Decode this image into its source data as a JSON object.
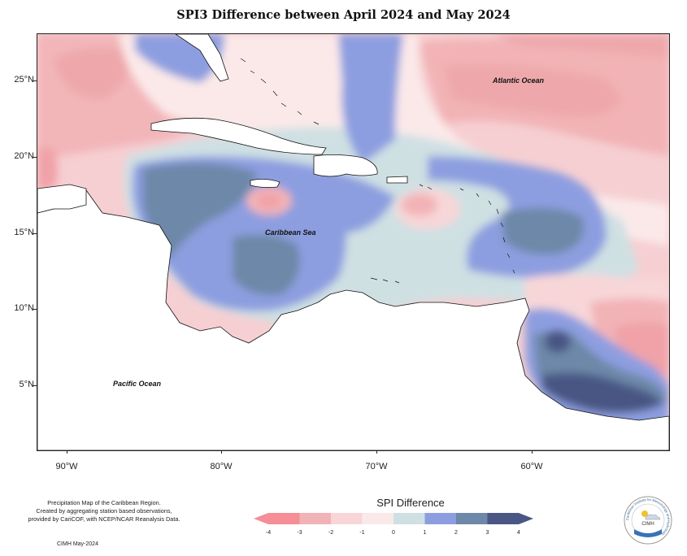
{
  "title": "SPI3 Difference between April 2024 and May 2024",
  "axes": {
    "y_ticks": [
      "25°N",
      "20°N",
      "15°N",
      "10°N",
      "5°N"
    ],
    "x_ticks": [
      "90°W",
      "80°W",
      "70°W",
      "60°W"
    ]
  },
  "places": {
    "atlantic": "Atlantic Ocean",
    "caribbean": "Caribbean Sea",
    "pacific": "Pacific Ocean"
  },
  "credits": {
    "line1": "Precipitation Map of the Caribbean Region.",
    "line2": "Created by aggregating station based observations,",
    "line3": "provided by CariCOF, with NCEP/NCAR Reanalysis Data."
  },
  "footnote": "CIMH May-2024",
  "legend": {
    "title": "SPI Difference",
    "labels": [
      "-4",
      "-3",
      "-2",
      "-1",
      "0",
      "1",
      "2",
      "3",
      "4"
    ],
    "colors": [
      "#f58e96",
      "#f2b3b6",
      "#f8d6d8",
      "#fbe9e9",
      "#cfe0e3",
      "#8d9ee0",
      "#6d88a8",
      "#4a5684"
    ]
  },
  "logo": {
    "label": "CIMH",
    "ring_text": "Caribbean Institute for Meteorology and Hydrology"
  }
}
